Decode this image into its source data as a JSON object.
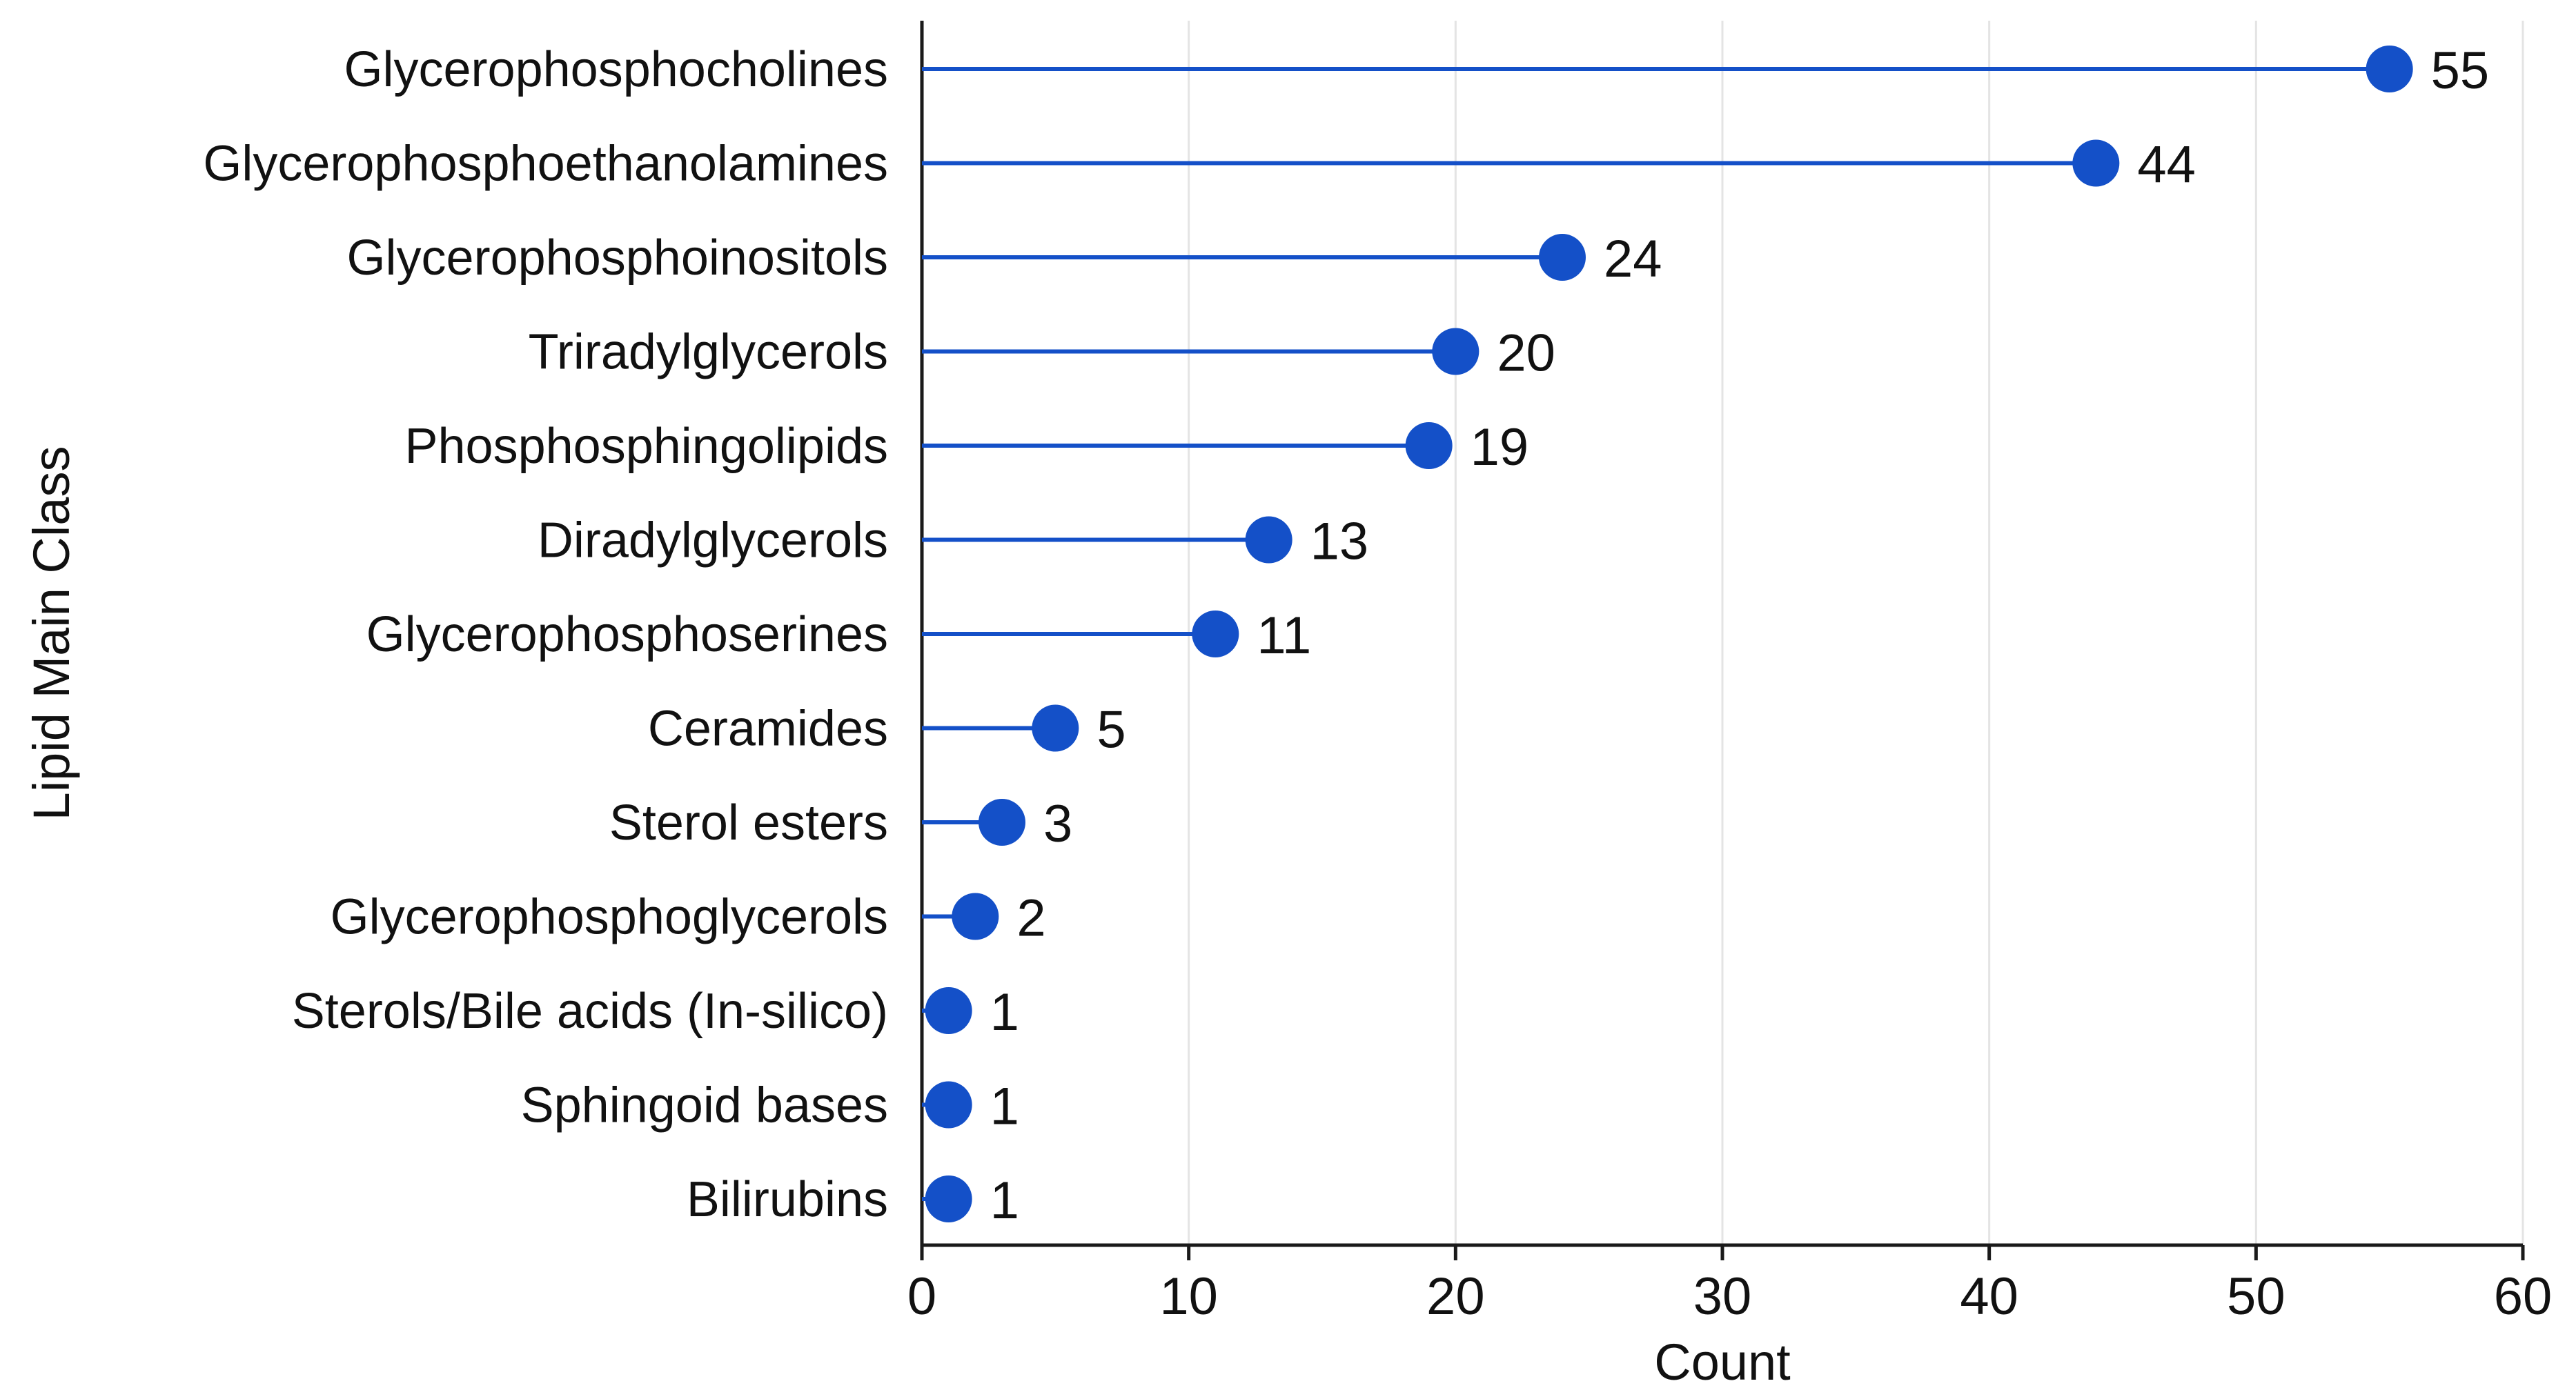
{
  "chart_data": {
    "type": "lollipop",
    "orientation": "horizontal",
    "xlabel": "Count",
    "ylabel": "Lipid Main Class",
    "xlim": [
      0,
      60
    ],
    "xticks": [
      0,
      10,
      20,
      30,
      40,
      50,
      60
    ],
    "grid": "vertical",
    "color": "#1450c8",
    "categories": [
      "Glycerophosphocholines",
      "Glycerophosphoethanolamines",
      "Glycerophosphoinositols",
      "Triradylglycerols",
      "Phosphosphingolipids",
      "Diradylglycerols",
      "Glycerophosphoserines",
      "Ceramides",
      "Sterol esters",
      "Glycerophosphoglycerols",
      "Sterols/Bile acids (In-silico)",
      "Sphingoid bases",
      "Bilirubins"
    ],
    "values": [
      55,
      44,
      24,
      20,
      19,
      13,
      11,
      5,
      3,
      2,
      1,
      1,
      1
    ]
  }
}
